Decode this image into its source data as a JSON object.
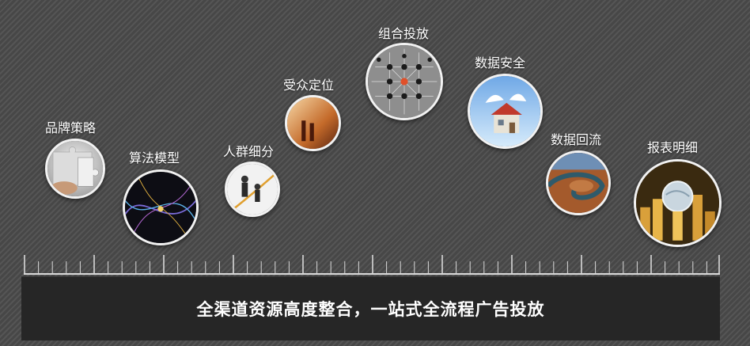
{
  "features": {
    "brand": "品牌策略",
    "algorithm": "算法模型",
    "segmentation": "人群细分",
    "targeting": "受众定位",
    "combined_delivery": "组合投放",
    "data_security": "数据安全",
    "data_backflow": "数据回流",
    "report_detail": "报表明细"
  },
  "banner": {
    "text": "全渠道资源高度整合，一站式全流程广告投放"
  },
  "colors": {
    "background": "#4a4a4a",
    "banner_bg": "#262626",
    "text": "#ffffff",
    "ruler": "#d9d9d9"
  }
}
